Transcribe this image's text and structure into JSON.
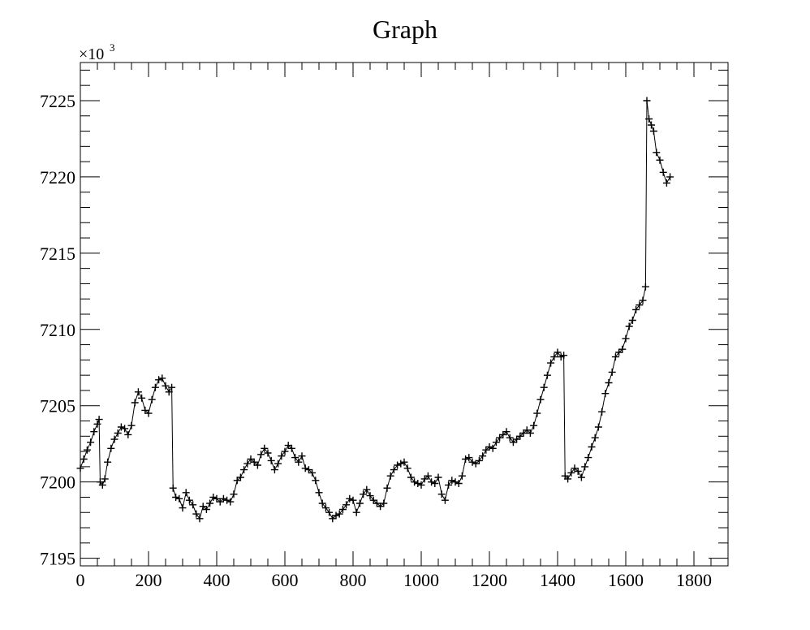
{
  "chart_data": {
    "type": "scatter",
    "title": "Graph",
    "xlabel": "",
    "ylabel": "",
    "y_multiplier_label": "×10",
    "y_multiplier_exponent": "3",
    "xlim": [
      0,
      1900
    ],
    "ylim": [
      7194.5,
      7227.5
    ],
    "x_ticks": [
      0,
      200,
      400,
      600,
      800,
      1000,
      1200,
      1400,
      1600,
      1800
    ],
    "y_ticks": [
      7195,
      7200,
      7205,
      7210,
      7215,
      7220,
      7225
    ],
    "x_tick_labels": [
      "0",
      "200",
      "400",
      "600",
      "800",
      "1000",
      "1200",
      "1400",
      "1600",
      "1800"
    ],
    "y_tick_labels": [
      "7195",
      "7200",
      "7205",
      "7210",
      "7215",
      "7220",
      "7225"
    ],
    "grid": false,
    "marker": "plus",
    "connected": true,
    "series": [
      {
        "points": [
          [
            0,
            7200.9
          ],
          [
            10,
            7201.5
          ],
          [
            20,
            7202.1
          ],
          [
            30,
            7202.6
          ],
          [
            40,
            7203.3
          ],
          [
            50,
            7203.8
          ],
          [
            55,
            7204.1
          ],
          [
            58,
            7200.0
          ],
          [
            65,
            7199.8
          ],
          [
            72,
            7200.2
          ],
          [
            80,
            7201.3
          ],
          [
            90,
            7202.2
          ],
          [
            100,
            7202.8
          ],
          [
            110,
            7203.2
          ],
          [
            120,
            7203.6
          ],
          [
            130,
            7203.5
          ],
          [
            140,
            7203.1
          ],
          [
            150,
            7203.7
          ],
          [
            160,
            7205.2
          ],
          [
            170,
            7205.9
          ],
          [
            180,
            7205.5
          ],
          [
            190,
            7204.7
          ],
          [
            200,
            7204.5
          ],
          [
            210,
            7205.4
          ],
          [
            220,
            7206.2
          ],
          [
            230,
            7206.7
          ],
          [
            240,
            7206.8
          ],
          [
            250,
            7206.3
          ],
          [
            260,
            7205.9
          ],
          [
            268,
            7206.2
          ],
          [
            272,
            7199.6
          ],
          [
            280,
            7199.0
          ],
          [
            290,
            7198.9
          ],
          [
            300,
            7198.3
          ],
          [
            310,
            7199.3
          ],
          [
            320,
            7198.8
          ],
          [
            330,
            7198.5
          ],
          [
            340,
            7197.9
          ],
          [
            350,
            7197.6
          ],
          [
            360,
            7198.4
          ],
          [
            370,
            7198.2
          ],
          [
            380,
            7198.6
          ],
          [
            390,
            7199.0
          ],
          [
            400,
            7198.9
          ],
          [
            410,
            7198.7
          ],
          [
            420,
            7198.9
          ],
          [
            430,
            7198.8
          ],
          [
            440,
            7198.7
          ],
          [
            450,
            7199.2
          ],
          [
            460,
            7200.1
          ],
          [
            470,
            7200.3
          ],
          [
            480,
            7200.8
          ],
          [
            490,
            7201.2
          ],
          [
            500,
            7201.5
          ],
          [
            510,
            7201.3
          ],
          [
            520,
            7201.1
          ],
          [
            530,
            7201.8
          ],
          [
            540,
            7202.2
          ],
          [
            550,
            7201.9
          ],
          [
            560,
            7201.4
          ],
          [
            570,
            7200.8
          ],
          [
            580,
            7201.2
          ],
          [
            590,
            7201.7
          ],
          [
            600,
            7202.0
          ],
          [
            610,
            7202.4
          ],
          [
            620,
            7202.2
          ],
          [
            630,
            7201.6
          ],
          [
            640,
            7201.3
          ],
          [
            650,
            7201.7
          ],
          [
            660,
            7200.9
          ],
          [
            670,
            7200.8
          ],
          [
            680,
            7200.6
          ],
          [
            690,
            7200.1
          ],
          [
            700,
            7199.3
          ],
          [
            710,
            7198.6
          ],
          [
            720,
            7198.3
          ],
          [
            730,
            7198.0
          ],
          [
            740,
            7197.6
          ],
          [
            750,
            7197.8
          ],
          [
            760,
            7197.9
          ],
          [
            770,
            7198.2
          ],
          [
            780,
            7198.5
          ],
          [
            790,
            7198.9
          ],
          [
            800,
            7198.8
          ],
          [
            810,
            7198.0
          ],
          [
            820,
            7198.6
          ],
          [
            830,
            7199.2
          ],
          [
            840,
            7199.5
          ],
          [
            850,
            7199.1
          ],
          [
            860,
            7198.8
          ],
          [
            870,
            7198.6
          ],
          [
            880,
            7198.4
          ],
          [
            890,
            7198.6
          ],
          [
            900,
            7199.6
          ],
          [
            910,
            7200.4
          ],
          [
            920,
            7200.8
          ],
          [
            930,
            7201.1
          ],
          [
            940,
            7201.2
          ],
          [
            950,
            7201.3
          ],
          [
            960,
            7200.9
          ],
          [
            970,
            7200.3
          ],
          [
            980,
            7200.0
          ],
          [
            990,
            7199.9
          ],
          [
            1000,
            7199.8
          ],
          [
            1010,
            7200.2
          ],
          [
            1020,
            7200.4
          ],
          [
            1030,
            7200.0
          ],
          [
            1040,
            7199.9
          ],
          [
            1050,
            7200.3
          ],
          [
            1060,
            7199.2
          ],
          [
            1070,
            7198.8
          ],
          [
            1080,
            7199.8
          ],
          [
            1090,
            7200.1
          ],
          [
            1100,
            7200.0
          ],
          [
            1110,
            7199.9
          ],
          [
            1120,
            7200.4
          ],
          [
            1130,
            7201.5
          ],
          [
            1140,
            7201.6
          ],
          [
            1150,
            7201.3
          ],
          [
            1160,
            7201.2
          ],
          [
            1170,
            7201.4
          ],
          [
            1180,
            7201.7
          ],
          [
            1190,
            7202.1
          ],
          [
            1200,
            7202.3
          ],
          [
            1210,
            7202.2
          ],
          [
            1220,
            7202.6
          ],
          [
            1230,
            7202.9
          ],
          [
            1240,
            7203.1
          ],
          [
            1250,
            7203.3
          ],
          [
            1260,
            7202.9
          ],
          [
            1270,
            7202.6
          ],
          [
            1280,
            7202.8
          ],
          [
            1290,
            7203.0
          ],
          [
            1300,
            7203.2
          ],
          [
            1310,
            7203.4
          ],
          [
            1320,
            7203.2
          ],
          [
            1330,
            7203.7
          ],
          [
            1340,
            7204.5
          ],
          [
            1350,
            7205.4
          ],
          [
            1360,
            7206.2
          ],
          [
            1370,
            7207.0
          ],
          [
            1380,
            7207.8
          ],
          [
            1390,
            7208.2
          ],
          [
            1400,
            7208.5
          ],
          [
            1410,
            7208.2
          ],
          [
            1418,
            7208.3
          ],
          [
            1422,
            7200.4
          ],
          [
            1430,
            7200.2
          ],
          [
            1440,
            7200.6
          ],
          [
            1450,
            7200.9
          ],
          [
            1460,
            7200.7
          ],
          [
            1470,
            7200.3
          ],
          [
            1480,
            7201.0
          ],
          [
            1490,
            7201.6
          ],
          [
            1500,
            7202.3
          ],
          [
            1510,
            7202.9
          ],
          [
            1520,
            7203.6
          ],
          [
            1530,
            7204.6
          ],
          [
            1540,
            7205.8
          ],
          [
            1550,
            7206.5
          ],
          [
            1560,
            7207.2
          ],
          [
            1570,
            7208.2
          ],
          [
            1580,
            7208.5
          ],
          [
            1590,
            7208.7
          ],
          [
            1600,
            7209.4
          ],
          [
            1610,
            7210.2
          ],
          [
            1620,
            7210.6
          ],
          [
            1630,
            7211.3
          ],
          [
            1640,
            7211.6
          ],
          [
            1650,
            7211.9
          ],
          [
            1658,
            7212.8
          ],
          [
            1662,
            7225.0
          ],
          [
            1668,
            7223.8
          ],
          [
            1675,
            7223.4
          ],
          [
            1682,
            7223.0
          ],
          [
            1690,
            7221.6
          ],
          [
            1700,
            7221.1
          ],
          [
            1710,
            7220.3
          ],
          [
            1720,
            7219.6
          ],
          [
            1730,
            7220.0
          ]
        ]
      }
    ]
  }
}
